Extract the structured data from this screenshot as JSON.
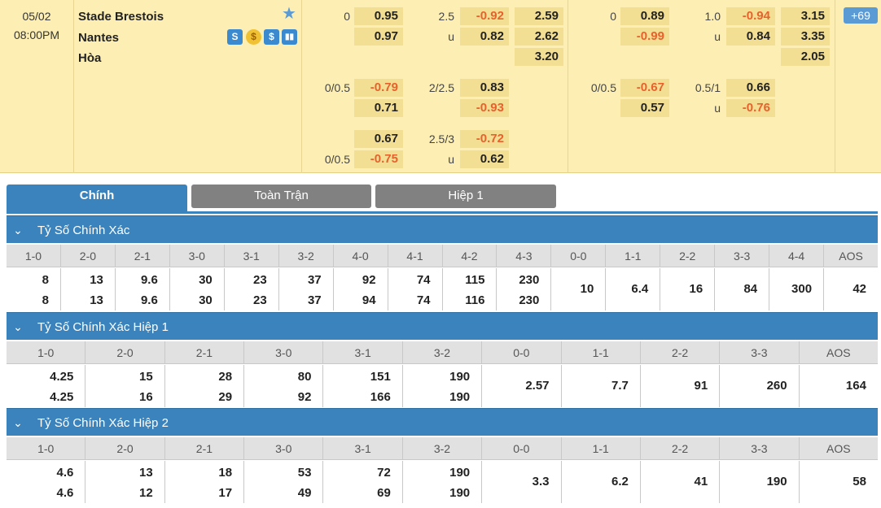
{
  "match": {
    "date": "05/02",
    "time": "08:00PM",
    "home": "Stade Brestois",
    "away": "Nantes",
    "draw": "Hòa",
    "more_count": "69",
    "icons": [
      "stats-s-icon",
      "dollar-coin-icon",
      "dollar-icon",
      "bar-chart-icon"
    ]
  },
  "odds": {
    "ft": {
      "hdp1": {
        "line": "0",
        "home": "0.95",
        "away": "0.97"
      },
      "ou1": {
        "line": "2.5",
        "over": "-0.92",
        "u": "u",
        "under": "0.82"
      },
      "x12": {
        "home": "2.59",
        "away": "2.62",
        "draw": "3.20"
      },
      "hdp2": {
        "line": "0/0.5",
        "home": "-0.79",
        "away": "0.71"
      },
      "ou2": {
        "line": "2/2.5",
        "over": "0.83",
        "under": "-0.93"
      },
      "hdp3": {
        "line": "0/0.5",
        "home": "0.67",
        "away": "-0.75"
      },
      "ou3": {
        "line": "2.5/3",
        "over": "-0.72",
        "u": "u",
        "under": "0.62"
      }
    },
    "h1": {
      "hdp1": {
        "line": "0",
        "home": "0.89",
        "away": "-0.99"
      },
      "ou1": {
        "line": "1.0",
        "over": "-0.94",
        "u": "u",
        "under": "0.84"
      },
      "x12": {
        "home": "3.15",
        "away": "3.35",
        "draw": "2.05"
      },
      "hdp2": {
        "line": "0/0.5",
        "home": "-0.67",
        "away": "0.57"
      },
      "ou2": {
        "line": "0.5/1",
        "over": "0.66",
        "u": "u",
        "under": "-0.76"
      }
    }
  },
  "tabs": [
    "Chính",
    "Toàn Trận",
    "Hiệp 1"
  ],
  "sections": [
    {
      "title": "Tỷ Số Chính Xác",
      "headers": [
        "1-0",
        "2-0",
        "2-1",
        "3-0",
        "3-1",
        "3-2",
        "4-0",
        "4-1",
        "4-2",
        "4-3",
        "0-0",
        "1-1",
        "2-2",
        "3-3",
        "4-4",
        "AOS"
      ],
      "rows": [
        [
          "8",
          "8"
        ],
        [
          "13",
          "13"
        ],
        [
          "9.6",
          "9.6"
        ],
        [
          "30",
          "30"
        ],
        [
          "23",
          "23"
        ],
        [
          "37",
          "37"
        ],
        [
          "92",
          "94"
        ],
        [
          "74",
          "74"
        ],
        [
          "115",
          "116"
        ],
        [
          "230",
          "230"
        ],
        [
          "10"
        ],
        [
          "6.4"
        ],
        [
          "16"
        ],
        [
          "84"
        ],
        [
          "300"
        ],
        [
          "42"
        ]
      ]
    },
    {
      "title": "Tỷ Số Chính Xác Hiệp 1",
      "headers": [
        "1-0",
        "2-0",
        "2-1",
        "3-0",
        "3-1",
        "3-2",
        "0-0",
        "1-1",
        "2-2",
        "3-3",
        "AOS"
      ],
      "rows": [
        [
          "4.25",
          "4.25"
        ],
        [
          "15",
          "16"
        ],
        [
          "28",
          "29"
        ],
        [
          "80",
          "92"
        ],
        [
          "151",
          "166"
        ],
        [
          "190",
          "190"
        ],
        [
          "2.57"
        ],
        [
          "7.7"
        ],
        [
          "91"
        ],
        [
          "260"
        ],
        [
          "164"
        ]
      ]
    },
    {
      "title": "Tỷ Số Chính Xác Hiệp 2",
      "headers": [
        "1-0",
        "2-0",
        "2-1",
        "3-0",
        "3-1",
        "3-2",
        "0-0",
        "1-1",
        "2-2",
        "3-3",
        "AOS"
      ],
      "rows": [
        [
          "4.6",
          "4.6"
        ],
        [
          "13",
          "12"
        ],
        [
          "18",
          "17"
        ],
        [
          "53",
          "49"
        ],
        [
          "72",
          "69"
        ],
        [
          "190",
          "190"
        ],
        [
          "3.3"
        ],
        [
          "6.2"
        ],
        [
          "41"
        ],
        [
          "190"
        ],
        [
          "58"
        ]
      ]
    }
  ]
}
